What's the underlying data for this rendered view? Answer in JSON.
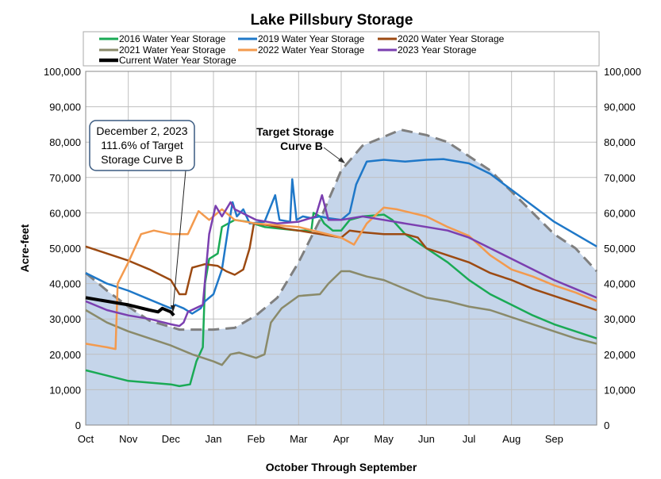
{
  "chart_data": {
    "type": "line",
    "title": "Lake Pillsbury Storage",
    "xlabel": "October Through September",
    "ylabel": "Acre-feet",
    "ylim": [
      0,
      100000
    ],
    "yticks": [
      0,
      10000,
      20000,
      30000,
      40000,
      50000,
      60000,
      70000,
      80000,
      90000,
      100000
    ],
    "ytick_labels": [
      "0",
      "10,000",
      "20,000",
      "30,000",
      "40,000",
      "50,000",
      "60,000",
      "70,000",
      "80,000",
      "90,000",
      "100,000"
    ],
    "x_categories": [
      "Oct",
      "Nov",
      "Dec",
      "Jan",
      "Feb",
      "Mar",
      "Apr",
      "May",
      "Jun",
      "Jul",
      "Aug",
      "Sep"
    ],
    "x_units": "months since Oct 1",
    "grid": true,
    "legend_position": "top",
    "target_curve": {
      "name": "Target Storage Curve B",
      "label_line1": "Target Storage",
      "label_line2": "Curve B",
      "color": "#7f7f7f",
      "fill": "#c5d5ea",
      "points": [
        [
          0,
          43000
        ],
        [
          0.5,
          38000
        ],
        [
          1,
          33500
        ],
        [
          1.5,
          29500
        ],
        [
          2.2,
          27000
        ],
        [
          3,
          27000
        ],
        [
          3.5,
          27500
        ],
        [
          4,
          31000
        ],
        [
          4.5,
          36000
        ],
        [
          5,
          46000
        ],
        [
          5.5,
          58000
        ],
        [
          6,
          72000
        ],
        [
          6.5,
          79000
        ],
        [
          7,
          81500
        ],
        [
          7.4,
          83500
        ],
        [
          8,
          82000
        ],
        [
          8.5,
          80000
        ],
        [
          9,
          76000
        ],
        [
          9.5,
          72000
        ],
        [
          10,
          66000
        ],
        [
          10.5,
          60000
        ],
        [
          11,
          54000
        ],
        [
          11.5,
          50000
        ],
        [
          12,
          43500
        ]
      ]
    },
    "series": [
      {
        "name": "2016 Water Year Storage",
        "color": "#1aaa55",
        "width": 2.5,
        "points": [
          [
            0,
            15500
          ],
          [
            1,
            12500
          ],
          [
            1.5,
            12000
          ],
          [
            2,
            11500
          ],
          [
            2.2,
            11000
          ],
          [
            2.45,
            11500
          ],
          [
            2.6,
            18000
          ],
          [
            2.75,
            22000
          ],
          [
            2.8,
            40000
          ],
          [
            2.9,
            47000
          ],
          [
            3.1,
            48500
          ],
          [
            3.2,
            56000
          ],
          [
            3.5,
            58000
          ],
          [
            3.8,
            57500
          ],
          [
            4.2,
            56000
          ],
          [
            4.6,
            55500
          ],
          [
            5.0,
            55000
          ],
          [
            5.3,
            55000
          ],
          [
            5.35,
            60000
          ],
          [
            5.5,
            59000
          ],
          [
            5.6,
            57000
          ],
          [
            5.8,
            55000
          ],
          [
            6,
            55000
          ],
          [
            6.2,
            58000
          ],
          [
            6.5,
            59000
          ],
          [
            7,
            59500
          ],
          [
            7.2,
            58000
          ],
          [
            7.5,
            54000
          ],
          [
            8,
            50000
          ],
          [
            8.5,
            46000
          ],
          [
            9,
            41000
          ],
          [
            9.5,
            37000
          ],
          [
            10,
            34000
          ],
          [
            10.5,
            31000
          ],
          [
            11,
            28500
          ],
          [
            11.5,
            26500
          ],
          [
            12,
            24500
          ]
        ]
      },
      {
        "name": "2019 Water Year Storage",
        "color": "#1f78c8",
        "width": 2.5,
        "points": [
          [
            0,
            43000
          ],
          [
            0.5,
            40000
          ],
          [
            1,
            38000
          ],
          [
            1.5,
            35500
          ],
          [
            2,
            33000
          ],
          [
            2.1,
            34000
          ],
          [
            2.3,
            33000
          ],
          [
            2.5,
            31500
          ],
          [
            2.7,
            33000
          ],
          [
            2.8,
            35000
          ],
          [
            3.0,
            37000
          ],
          [
            3.2,
            44000
          ],
          [
            3.35,
            56000
          ],
          [
            3.45,
            63000
          ],
          [
            3.55,
            59000
          ],
          [
            3.7,
            61000
          ],
          [
            3.85,
            57000
          ],
          [
            4.2,
            57500
          ],
          [
            4.45,
            65000
          ],
          [
            4.55,
            58000
          ],
          [
            4.8,
            57500
          ],
          [
            4.85,
            69500
          ],
          [
            4.95,
            58000
          ],
          [
            5.1,
            59000
          ],
          [
            5.3,
            58500
          ],
          [
            5.5,
            59000
          ],
          [
            5.7,
            58500
          ],
          [
            6,
            58000
          ],
          [
            6.2,
            60000
          ],
          [
            6.35,
            68000
          ],
          [
            6.6,
            74500
          ],
          [
            7,
            75000
          ],
          [
            7.5,
            74500
          ],
          [
            8,
            75000
          ],
          [
            8.4,
            75200
          ],
          [
            9,
            74000
          ],
          [
            9.5,
            71000
          ],
          [
            10,
            66500
          ],
          [
            10.5,
            62000
          ],
          [
            11,
            57500
          ],
          [
            11.5,
            54000
          ],
          [
            12,
            50500
          ]
        ]
      },
      {
        "name": "2020 Water Year Storage",
        "color": "#9c4a12",
        "width": 2.5,
        "points": [
          [
            0,
            50500
          ],
          [
            0.5,
            48500
          ],
          [
            1,
            46500
          ],
          [
            1.5,
            44000
          ],
          [
            2,
            41000
          ],
          [
            2.2,
            37000
          ],
          [
            2.35,
            37000
          ],
          [
            2.5,
            44500
          ],
          [
            2.8,
            45500
          ],
          [
            3.1,
            45000
          ],
          [
            3.3,
            43500
          ],
          [
            3.5,
            42500
          ],
          [
            3.7,
            44000
          ],
          [
            3.85,
            50000
          ],
          [
            3.95,
            57000
          ],
          [
            4.3,
            56500
          ],
          [
            4.7,
            55500
          ],
          [
            5.0,
            55000
          ],
          [
            5.5,
            54000
          ],
          [
            6,
            53000
          ],
          [
            6.2,
            55000
          ],
          [
            6.5,
            54500
          ],
          [
            7,
            54000
          ],
          [
            7.5,
            54000
          ],
          [
            7.8,
            53000
          ],
          [
            8,
            50000
          ],
          [
            8.5,
            48000
          ],
          [
            9,
            46000
          ],
          [
            9.5,
            43000
          ],
          [
            10,
            41000
          ],
          [
            10.5,
            38500
          ],
          [
            11,
            36500
          ],
          [
            11.5,
            34500
          ],
          [
            12,
            32500
          ]
        ]
      },
      {
        "name": "2021 Water Year Storage",
        "color": "#8a8a6a",
        "width": 2.5,
        "points": [
          [
            0,
            32500
          ],
          [
            0.5,
            29000
          ],
          [
            1,
            26500
          ],
          [
            1.5,
            24500
          ],
          [
            2,
            22500
          ],
          [
            2.5,
            20000
          ],
          [
            3,
            18000
          ],
          [
            3.2,
            17000
          ],
          [
            3.4,
            20000
          ],
          [
            3.6,
            20500
          ],
          [
            4.0,
            19000
          ],
          [
            4.2,
            20000
          ],
          [
            4.35,
            29000
          ],
          [
            4.6,
            33000
          ],
          [
            5.0,
            36500
          ],
          [
            5.5,
            37000
          ],
          [
            5.7,
            40000
          ],
          [
            6,
            43500
          ],
          [
            6.2,
            43500
          ],
          [
            6.6,
            42000
          ],
          [
            7,
            41000
          ],
          [
            7.5,
            38500
          ],
          [
            8,
            36000
          ],
          [
            8.5,
            35000
          ],
          [
            9,
            33500
          ],
          [
            9.5,
            32500
          ],
          [
            10,
            30500
          ],
          [
            10.5,
            28500
          ],
          [
            11,
            26500
          ],
          [
            11.5,
            24500
          ],
          [
            12,
            23000
          ]
        ]
      },
      {
        "name": "2022 Water Year Storage",
        "color": "#f39a4e",
        "width": 2.5,
        "points": [
          [
            0,
            23000
          ],
          [
            0.5,
            22000
          ],
          [
            0.7,
            21500
          ],
          [
            0.75,
            40000
          ],
          [
            1,
            46000
          ],
          [
            1.3,
            54000
          ],
          [
            1.6,
            55000
          ],
          [
            2,
            54000
          ],
          [
            2.4,
            54000
          ],
          [
            2.65,
            60500
          ],
          [
            2.9,
            58000
          ],
          [
            3.2,
            61000
          ],
          [
            3.5,
            58000
          ],
          [
            4,
            57000
          ],
          [
            5,
            56000
          ],
          [
            5.5,
            54500
          ],
          [
            6,
            53000
          ],
          [
            6.3,
            51000
          ],
          [
            6.6,
            57000
          ],
          [
            7,
            61500
          ],
          [
            7.3,
            61000
          ],
          [
            8,
            59000
          ],
          [
            8.5,
            56000
          ],
          [
            9,
            53500
          ],
          [
            9.5,
            48000
          ],
          [
            10,
            44000
          ],
          [
            10.5,
            42000
          ],
          [
            11,
            39500
          ],
          [
            11.5,
            37500
          ],
          [
            12,
            35000
          ]
        ]
      },
      {
        "name": "2023 Year Storage",
        "color": "#7b3fb0",
        "width": 2.5,
        "points": [
          [
            0,
            35000
          ],
          [
            0.5,
            32500
          ],
          [
            1,
            31000
          ],
          [
            1.5,
            30000
          ],
          [
            2,
            28500
          ],
          [
            2.2,
            28000
          ],
          [
            2.3,
            29000
          ],
          [
            2.4,
            32000
          ],
          [
            2.75,
            34000
          ],
          [
            2.9,
            54000
          ],
          [
            3.05,
            62000
          ],
          [
            3.2,
            59000
          ],
          [
            3.4,
            63000
          ],
          [
            3.5,
            61000
          ],
          [
            4,
            58000
          ],
          [
            4.5,
            57000
          ],
          [
            5,
            57500
          ],
          [
            5.4,
            59000
          ],
          [
            5.55,
            65000
          ],
          [
            5.7,
            58000
          ],
          [
            6,
            58000
          ],
          [
            6.5,
            59000
          ],
          [
            7,
            58000
          ],
          [
            7.5,
            57000
          ],
          [
            8,
            56000
          ],
          [
            8.5,
            55000
          ],
          [
            9,
            53000
          ],
          [
            9.5,
            50000
          ],
          [
            10,
            47000
          ],
          [
            10.5,
            44000
          ],
          [
            11,
            41000
          ],
          [
            11.5,
            38500
          ],
          [
            12,
            36000
          ]
        ]
      },
      {
        "name": "Current Water Year Storage",
        "color": "#000000",
        "width": 4,
        "points": [
          [
            0,
            36000
          ],
          [
            0.5,
            35000
          ],
          [
            1,
            34000
          ],
          [
            1.5,
            32500
          ],
          [
            1.7,
            32000
          ],
          [
            1.8,
            33000
          ],
          [
            2,
            32000
          ],
          [
            2.07,
            31000
          ]
        ]
      }
    ],
    "annotation": {
      "line1": "December 2, 2023",
      "line2": "111.6% of Target",
      "line3": "Storage Curve B"
    }
  }
}
